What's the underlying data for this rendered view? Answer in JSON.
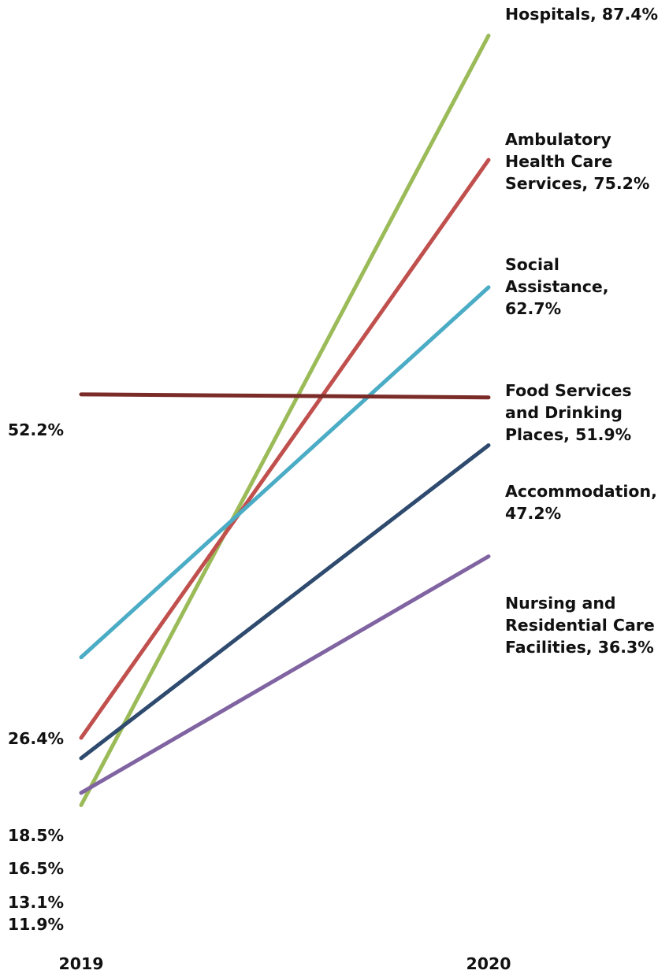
{
  "chart_data": {
    "type": "line",
    "categories": [
      "2019",
      "2020"
    ],
    "series": [
      {
        "name": "Hospitals",
        "values": [
          11.9,
          87.4
        ],
        "color": "#9bbb59",
        "start_label": "11.9%",
        "end_label": [
          "Hospitals, 87.4%"
        ]
      },
      {
        "name": "Ambulatory Health Care Services",
        "values": [
          18.5,
          75.2
        ],
        "color": "#c0504d",
        "start_label": "18.5%",
        "end_label": [
          "Ambulatory",
          "Health Care",
          "Services, 75.2%"
        ]
      },
      {
        "name": "Social Assistance",
        "values": [
          26.4,
          62.7
        ],
        "color": "#4bacc6",
        "start_label": "26.4%",
        "end_label": [
          "Social",
          "Assistance,",
          "62.7%"
        ]
      },
      {
        "name": "Food Services and Drinking Places",
        "values": [
          52.2,
          51.9
        ],
        "color": "#7b2c28",
        "start_label": "52.2%",
        "end_label": [
          "Food Services",
          "and Drinking",
          "Places, 51.9%"
        ]
      },
      {
        "name": "Accommodation",
        "values": [
          16.5,
          47.2
        ],
        "color": "#2e4a6e",
        "start_label": "16.5%",
        "end_label": [
          "Accommodation,",
          "47.2%"
        ]
      },
      {
        "name": "Nursing and Residential Care Facilities",
        "values": [
          13.1,
          36.3
        ],
        "color": "#8064a2",
        "start_label": "13.1%",
        "end_label": [
          "Nursing and",
          "Residential Care",
          "Facilities, 36.3%"
        ]
      }
    ],
    "title": "",
    "xlabel": "",
    "ylabel": "",
    "grid": false,
    "legend": "none"
  }
}
